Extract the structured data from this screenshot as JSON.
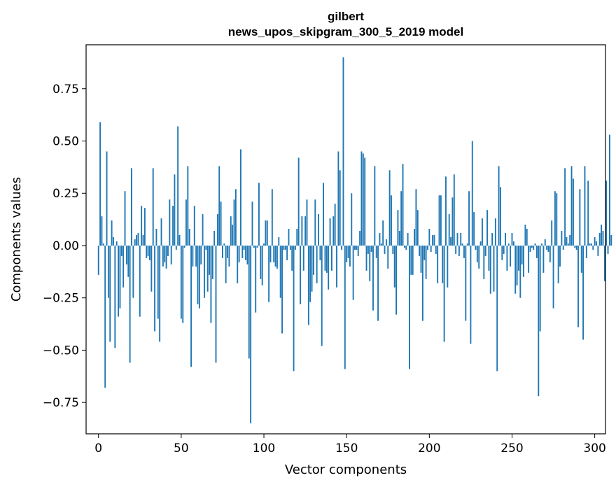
{
  "chart_data": {
    "type": "bar",
    "title": "gilbert",
    "subtitle": "news_upos_skipgram_300_5_2019 model",
    "xlabel": "Vector components",
    "ylabel": "Components values",
    "xlim": [
      -7.5,
      306.5
    ],
    "ylim": [
      -0.9,
      0.96
    ],
    "xticks": [
      0,
      50,
      100,
      150,
      200,
      250,
      300
    ],
    "xtick_labels": [
      "0",
      "50",
      "100",
      "150",
      "200",
      "250",
      "300"
    ],
    "yticks": [
      -0.75,
      -0.5,
      -0.25,
      0.0,
      0.25,
      0.5,
      0.75
    ],
    "ytick_labels": [
      "−0.75",
      "−0.50",
      "−0.25",
      "0.00",
      "0.25",
      "0.50",
      "0.75"
    ],
    "grid": false,
    "bar_color": "#1f77b4",
    "values": [
      -0.14,
      0.59,
      0.14,
      0.01,
      -0.68,
      0.45,
      -0.25,
      -0.46,
      0.12,
      0.04,
      -0.49,
      0.02,
      -0.34,
      -0.3,
      -0.05,
      -0.2,
      0.26,
      -0.09,
      -0.15,
      -0.56,
      0.37,
      -0.25,
      0.03,
      0.05,
      0.06,
      -0.34,
      0.19,
      0.05,
      0.18,
      -0.06,
      -0.05,
      -0.07,
      -0.22,
      0.37,
      -0.41,
      0.08,
      -0.35,
      -0.46,
      0.13,
      -0.1,
      -0.08,
      -0.11,
      -0.05,
      0.22,
      -0.09,
      0.19,
      0.34,
      -0.02,
      0.57,
      0.05,
      -0.35,
      -0.37,
      -0.01,
      0.22,
      0.38,
      0.08,
      -0.58,
      -0.1,
      0.19,
      -0.1,
      -0.28,
      -0.3,
      -0.09,
      0.15,
      -0.25,
      -0.02,
      -0.22,
      -0.14,
      -0.37,
      -0.16,
      0.07,
      -0.56,
      0.15,
      0.38,
      0.21,
      -0.06,
      0.01,
      -0.18,
      -0.06,
      -0.1,
      0.14,
      0.1,
      0.22,
      0.27,
      -0.18,
      -0.08,
      0.46,
      -0.06,
      -0.02,
      -0.07,
      -0.09,
      -0.54,
      -0.85,
      0.21,
      -0.01,
      -0.32,
      -0.01,
      0.3,
      -0.16,
      -0.19,
      0.01,
      0.12,
      0.12,
      -0.27,
      -0.08,
      0.27,
      -0.08,
      -0.1,
      -0.11,
      0.04,
      -0.25,
      -0.42,
      -0.02,
      -0.02,
      -0.07,
      0.08,
      -0.02,
      -0.12,
      -0.6,
      -0.02,
      0.08,
      0.42,
      -0.28,
      0.14,
      -0.12,
      0.14,
      0.22,
      -0.38,
      -0.27,
      -0.22,
      -0.14,
      0.22,
      -0.18,
      0.15,
      -0.07,
      -0.48,
      0.3,
      -0.12,
      -0.13,
      -0.21,
      0.13,
      -0.12,
      0.14,
      0.2,
      -0.2,
      0.45,
      0.36,
      -0.02,
      0.9,
      -0.59,
      -0.08,
      -0.06,
      -0.1,
      0.25,
      -0.26,
      -0.02,
      -0.02,
      -0.05,
      0.07,
      0.45,
      0.44,
      0.42,
      -0.12,
      -0.04,
      -0.17,
      -0.03,
      -0.31,
      0.38,
      -0.06,
      -0.36,
      0.06,
      0.01,
      0.12,
      -0.04,
      0.03,
      -0.11,
      0.36,
      0.24,
      -0.04,
      -0.2,
      -0.33,
      0.17,
      0.07,
      0.26,
      0.39,
      -0.01,
      -0.02,
      0.06,
      -0.59,
      -0.14,
      -0.14,
      0.08,
      0.27,
      0.17,
      -0.05,
      -0.13,
      -0.36,
      -0.07,
      -0.16,
      -0.02,
      0.08,
      -0.03,
      0.05,
      0.05,
      -0.04,
      -0.18,
      0.24,
      0.24,
      -0.18,
      -0.46,
      0.33,
      -0.2,
      0.15,
      0.04,
      0.23,
      0.34,
      -0.04,
      0.06,
      -0.05,
      0.06,
      0.01,
      -0.06,
      -0.36,
      0.01,
      0.26,
      -0.47,
      0.5,
      0.16,
      -0.02,
      -0.08,
      -0.11,
      0.02,
      0.13,
      -0.16,
      -0.05,
      0.17,
      -0.12,
      -0.23,
      0.06,
      -0.22,
      0.13,
      -0.6,
      0.38,
      0.28,
      -0.07,
      -0.04,
      0.06,
      -0.12,
      0.01,
      -0.1,
      0.06,
      0.02,
      -0.23,
      -0.19,
      -0.12,
      -0.25,
      -0.09,
      -0.15,
      0.1,
      0.08,
      -0.13,
      -0.03,
      -0.01,
      -0.02,
      0.01,
      -0.06,
      -0.72,
      -0.41,
      0.01,
      -0.13,
      0.03,
      -0.02,
      -0.03,
      -0.08,
      0.12,
      -0.3,
      0.26,
      0.25,
      -0.18,
      -0.1,
      0.07,
      -0.02,
      0.37,
      0.04,
      0.01,
      0.05,
      0.38,
      0.32,
      -0.01,
      -0.02,
      -0.39,
      0.27,
      -0.13,
      -0.45,
      0.38,
      -0.06,
      0.31,
      0.01,
      0.01,
      -0.02,
      0.04,
      0.02,
      -0.05,
      0.06,
      0.1,
      0.07,
      -0.17,
      0.31,
      -0.04,
      0.53,
      0.05
    ]
  }
}
